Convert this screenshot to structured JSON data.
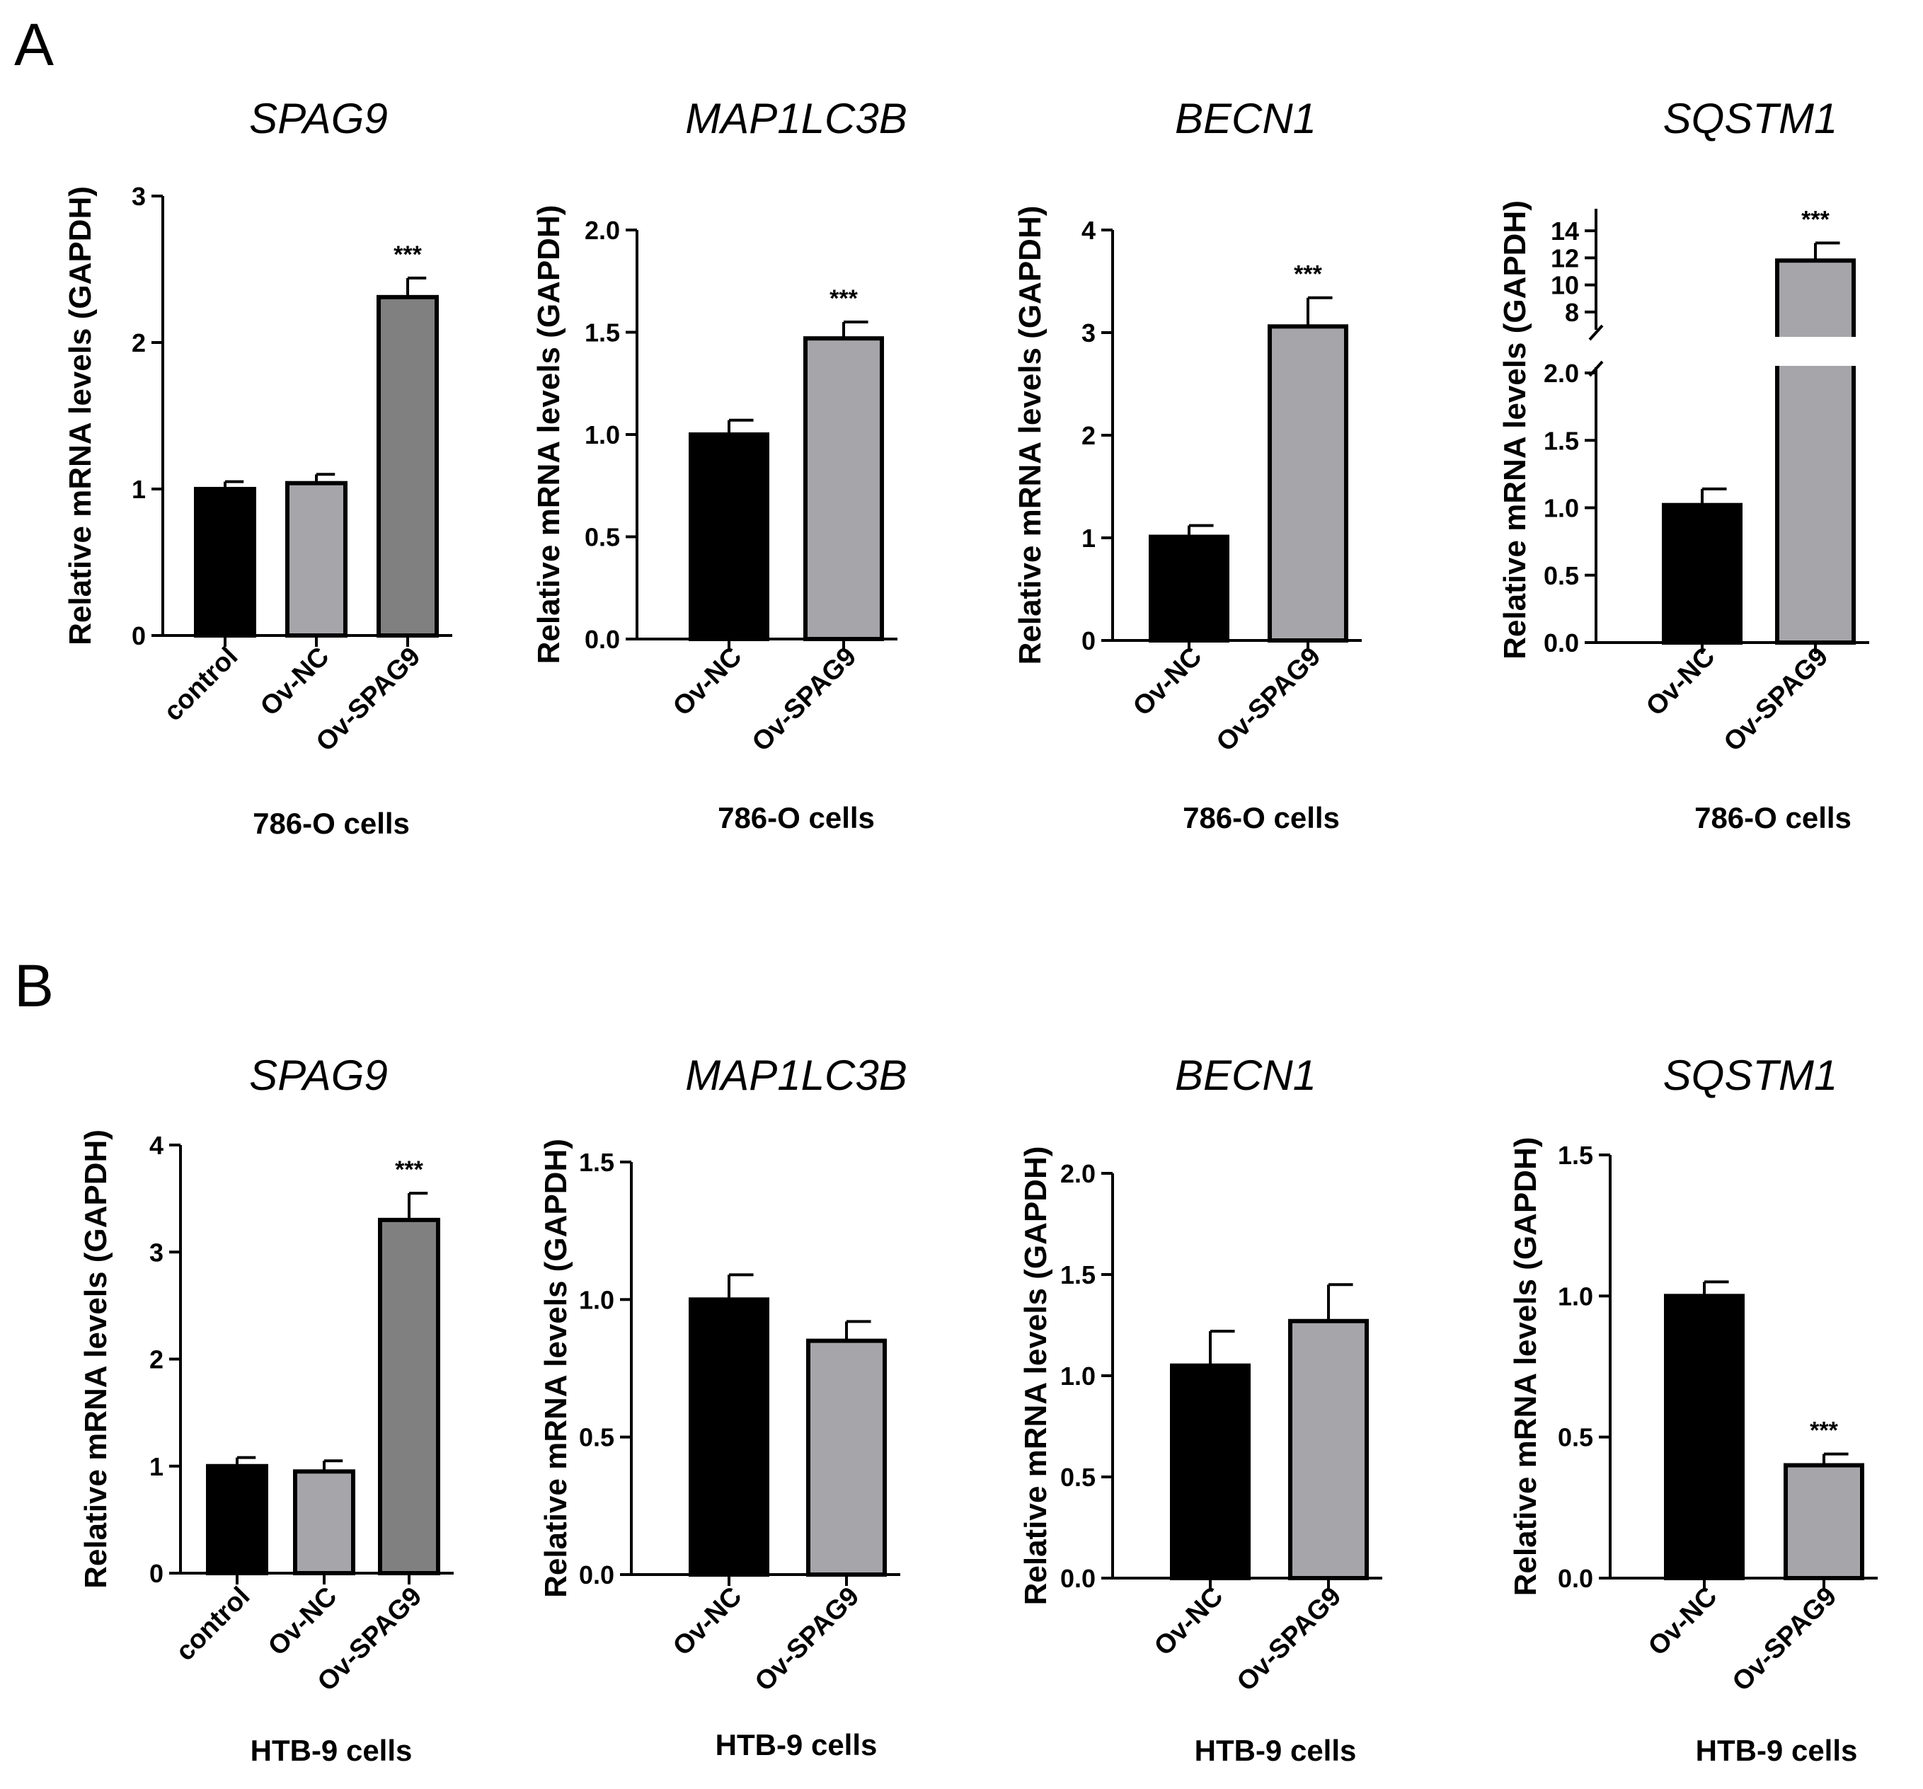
{
  "panel_labels": [
    "A",
    "B"
  ],
  "chart_data": [
    {
      "type": "bar",
      "panel": "A",
      "title": "SPAG9",
      "ylabel": "Relative mRNA levels (GAPDH)",
      "xlabel": "786-O cells",
      "categories": [
        "control",
        "Ov-NC",
        "Ov-SPAG9"
      ],
      "values": [
        1.0,
        1.04,
        2.31
      ],
      "errors": [
        0.05,
        0.06,
        0.13
      ],
      "colors": [
        "#000000",
        "#a5a5aa",
        "#808080"
      ],
      "significance": [
        "",
        "",
        "***"
      ],
      "ylim": [
        0,
        3
      ],
      "yticks": [
        0,
        1,
        2,
        3
      ],
      "yticklabels": [
        "0",
        "1",
        "2",
        "3"
      ]
    },
    {
      "type": "bar",
      "panel": "A",
      "title": "MAP1LC3B",
      "ylabel": "Relative mRNA levels (GAPDH)",
      "xlabel": "786-O cells",
      "categories": [
        "Ov-NC",
        "Ov-SPAG9"
      ],
      "values": [
        1.0,
        1.47
      ],
      "errors": [
        0.07,
        0.08
      ],
      "colors": [
        "#000000",
        "#a5a5aa"
      ],
      "significance": [
        "",
        "***"
      ],
      "ylim": [
        0,
        2
      ],
      "yticks": [
        0,
        0.5,
        1,
        1.5,
        2
      ],
      "yticklabels": [
        "0.0",
        "0.5",
        "1.0",
        "1.5",
        "2.0"
      ]
    },
    {
      "type": "bar",
      "panel": "A",
      "title": "BECN1",
      "ylabel": "Relative mRNA levels (GAPDH)",
      "xlabel": "786-O cells",
      "categories": [
        "Ov-NC",
        "Ov-SPAG9"
      ],
      "values": [
        1.01,
        3.06
      ],
      "errors": [
        0.11,
        0.28
      ],
      "colors": [
        "#000000",
        "#a5a5aa"
      ],
      "significance": [
        "",
        "***"
      ],
      "ylim": [
        0,
        4
      ],
      "yticks": [
        0,
        1,
        2,
        3,
        4
      ],
      "yticklabels": [
        "0",
        "1",
        "2",
        "3",
        "4"
      ]
    },
    {
      "type": "bar",
      "panel": "A",
      "title": "SQSTM1",
      "ylabel": "Relative mRNA levels (GAPDH)",
      "xlabel": "786-O cells",
      "categories": [
        "Ov-NC",
        "Ov-SPAG9"
      ],
      "values": [
        1.02,
        11.8
      ],
      "errors": [
        0.12,
        1.3
      ],
      "colors": [
        "#000000",
        "#a5a5aa"
      ],
      "significance": [
        "",
        "***"
      ],
      "broken_axis": {
        "lower": [
          0,
          2
        ],
        "upper": [
          7,
          15
        ]
      },
      "yticks": [
        0,
        0.5,
        1,
        1.5,
        2,
        8,
        10,
        12,
        14
      ],
      "yticklabels": [
        "0.0",
        "0.5",
        "1.0",
        "1.5",
        "2.0",
        "8",
        "10",
        "12",
        "14"
      ]
    },
    {
      "type": "bar",
      "panel": "B",
      "title": "SPAG9",
      "ylabel": "Relative mRNA levels (GAPDH)",
      "xlabel": "HTB-9 cells",
      "categories": [
        "control",
        "Ov-NC",
        "Ov-SPAG9"
      ],
      "values": [
        1.0,
        0.95,
        3.3
      ],
      "errors": [
        0.08,
        0.1,
        0.25
      ],
      "colors": [
        "#000000",
        "#a5a5aa",
        "#808080"
      ],
      "significance": [
        "",
        "",
        "***"
      ],
      "ylim": [
        0,
        4
      ],
      "yticks": [
        0,
        1,
        2,
        3,
        4
      ],
      "yticklabels": [
        "0",
        "1",
        "2",
        "3",
        "4"
      ]
    },
    {
      "type": "bar",
      "panel": "B",
      "title": "MAP1LC3B",
      "ylabel": "Relative mRNA levels (GAPDH)",
      "xlabel": "HTB-9 cells",
      "categories": [
        "Ov-NC",
        "Ov-SPAG9"
      ],
      "values": [
        1.0,
        0.85
      ],
      "errors": [
        0.09,
        0.07
      ],
      "colors": [
        "#000000",
        "#a5a5aa"
      ],
      "significance": [
        "",
        ""
      ],
      "ylim": [
        0,
        1.5
      ],
      "yticks": [
        0,
        0.5,
        1,
        1.5
      ],
      "yticklabels": [
        "0.0",
        "0.5",
        "1.0",
        "1.5"
      ]
    },
    {
      "type": "bar",
      "panel": "B",
      "title": "BECN1",
      "ylabel": "Relative mRNA levels (GAPDH)",
      "xlabel": "HTB-9 cells",
      "categories": [
        "Ov-NC",
        "Ov-SPAG9"
      ],
      "values": [
        1.05,
        1.27
      ],
      "errors": [
        0.17,
        0.18
      ],
      "colors": [
        "#000000",
        "#a5a5aa"
      ],
      "significance": [
        "",
        ""
      ],
      "ylim": [
        0,
        2
      ],
      "yticks": [
        0,
        0.5,
        1,
        1.5,
        2
      ],
      "yticklabels": [
        "0.0",
        "0.5",
        "1.0",
        "1.5",
        "2.0"
      ]
    },
    {
      "type": "bar",
      "panel": "B",
      "title": "SQSTM1",
      "ylabel": "Relative mRNA levels (GAPDH)",
      "xlabel": "HTB-9 cells",
      "categories": [
        "Ov-NC",
        "Ov-SPAG9"
      ],
      "values": [
        1.0,
        0.4
      ],
      "errors": [
        0.05,
        0.04
      ],
      "colors": [
        "#000000",
        "#a5a5aa"
      ],
      "significance": [
        "",
        "***"
      ],
      "ylim": [
        0,
        1.5
      ],
      "yticks": [
        0,
        0.5,
        1,
        1.5
      ],
      "yticklabels": [
        "0.0",
        "0.5",
        "1.0",
        "1.5"
      ]
    }
  ]
}
